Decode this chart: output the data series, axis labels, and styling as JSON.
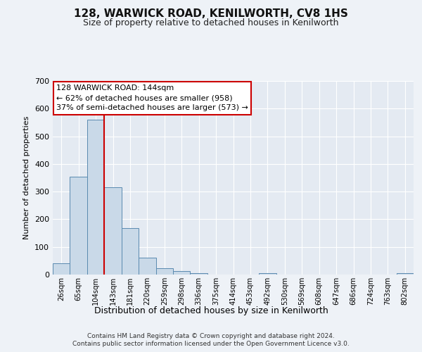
{
  "title": "128, WARWICK ROAD, KENILWORTH, CV8 1HS",
  "subtitle": "Size of property relative to detached houses in Kenilworth",
  "xlabel": "Distribution of detached houses by size in Kenilworth",
  "ylabel": "Number of detached properties",
  "bin_labels": [
    "26sqm",
    "65sqm",
    "104sqm",
    "143sqm",
    "181sqm",
    "220sqm",
    "259sqm",
    "298sqm",
    "336sqm",
    "375sqm",
    "414sqm",
    "453sqm",
    "492sqm",
    "530sqm",
    "569sqm",
    "608sqm",
    "647sqm",
    "686sqm",
    "724sqm",
    "763sqm",
    "802sqm"
  ],
  "bar_values": [
    40,
    355,
    560,
    315,
    168,
    62,
    22,
    12,
    6,
    0,
    0,
    0,
    5,
    0,
    0,
    0,
    0,
    0,
    0,
    0,
    5
  ],
  "bar_color": "#c9d9e8",
  "bar_edge_color": "#5a8ab0",
  "property_line_x": 2.5,
  "property_line_color": "#cc0000",
  "annotation_text": "128 WARWICK ROAD: 144sqm\n← 62% of detached houses are smaller (958)\n37% of semi-detached houses are larger (573) →",
  "annotation_box_color": "#ffffff",
  "annotation_box_edge": "#cc0000",
  "ylim": [
    0,
    700
  ],
  "yticks": [
    0,
    100,
    200,
    300,
    400,
    500,
    600,
    700
  ],
  "footer_line1": "Contains HM Land Registry data © Crown copyright and database right 2024.",
  "footer_line2": "Contains public sector information licensed under the Open Government Licence v3.0.",
  "background_color": "#eef2f7",
  "plot_bg_color": "#e4eaf2"
}
